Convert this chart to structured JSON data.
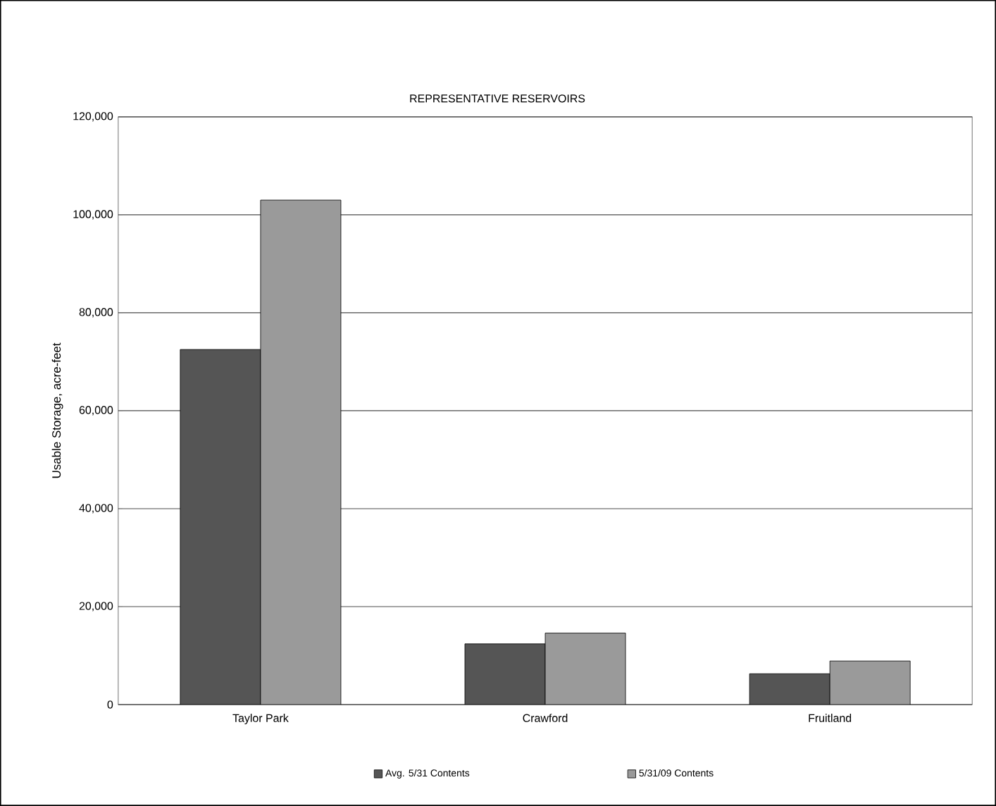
{
  "chart_data": {
    "type": "bar",
    "title": "REPRESENTATIVE RESERVOIRS",
    "ylabel": "Usable Storage, acre-feet",
    "categories": [
      "Taylor Park",
      "Crawford",
      "Fruitland"
    ],
    "series": [
      {
        "name": "Avg. 5/31 Contents",
        "color": "#555555",
        "values": [
          72500,
          12400,
          6300
        ]
      },
      {
        "name": "5/31/09 Contents",
        "color": "#9a9a9a",
        "values": [
          103000,
          14600,
          8900
        ]
      }
    ],
    "ylim": [
      0,
      120000
    ],
    "yticks": [
      {
        "value": 0,
        "label": "0"
      },
      {
        "value": 20000,
        "label": "20,000"
      },
      {
        "value": 40000,
        "label": "40,000"
      },
      {
        "value": 60000,
        "label": "60,000"
      },
      {
        "value": 80000,
        "label": "80,000"
      },
      {
        "value": 100000,
        "label": "100,000"
      },
      {
        "value": 120000,
        "label": "120,000"
      }
    ],
    "grid": "y",
    "legend": "bottom"
  }
}
